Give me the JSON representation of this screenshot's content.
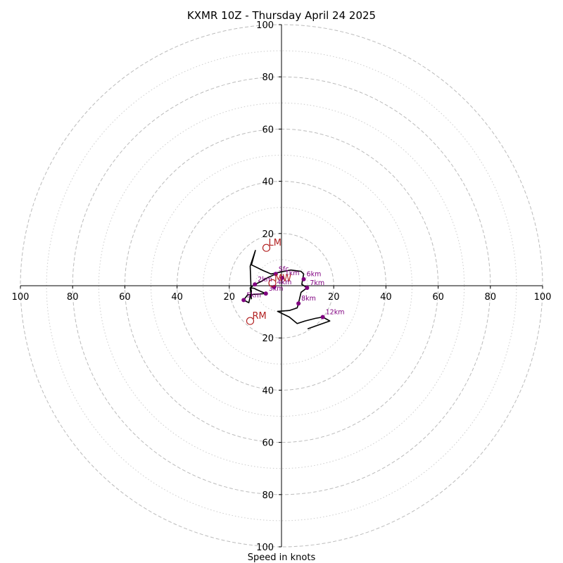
{
  "chart_data": {
    "type": "scatter",
    "subtype": "hodograph",
    "title": "KXMR 10Z - Thursday April 24 2025",
    "xlabel": "Speed in knots",
    "ylabel": "",
    "xlim": [
      -100,
      100
    ],
    "ylim": [
      -100,
      100
    ],
    "rings": {
      "major": [
        20,
        40,
        60,
        80,
        100
      ],
      "minor": [
        10,
        30,
        50,
        70,
        90
      ]
    },
    "x_ticks": [
      {
        "value": -100,
        "label": "100"
      },
      {
        "value": -80,
        "label": "80"
      },
      {
        "value": -60,
        "label": "60"
      },
      {
        "value": -40,
        "label": "40"
      },
      {
        "value": -20,
        "label": "20"
      },
      {
        "value": 20,
        "label": "20"
      },
      {
        "value": 40,
        "label": "40"
      },
      {
        "value": 60,
        "label": "60"
      },
      {
        "value": 80,
        "label": "80"
      },
      {
        "value": 100,
        "label": "100"
      }
    ],
    "y_ticks": [
      {
        "value": 100,
        "label": "100"
      },
      {
        "value": 80,
        "label": "80"
      },
      {
        "value": 60,
        "label": "60"
      },
      {
        "value": 40,
        "label": "40"
      },
      {
        "value": 20,
        "label": "20"
      },
      {
        "value": -20,
        "label": "20"
      },
      {
        "value": -40,
        "label": "40"
      },
      {
        "value": -60,
        "label": "60"
      },
      {
        "value": -80,
        "label": "80"
      },
      {
        "value": -100,
        "label": "100"
      }
    ],
    "profile": [
      [
        -2.2,
        4.5
      ],
      [
        -5.5,
        3.0
      ],
      [
        -8.0,
        1.5
      ],
      [
        -10.2,
        0.5
      ],
      [
        -12.0,
        -0.8
      ],
      [
        -10.5,
        -1.0
      ],
      [
        -9.5,
        -1.5
      ],
      [
        -6.0,
        -3.0
      ],
      [
        -13.0,
        -3.5
      ],
      [
        -14.5,
        -5.5
      ],
      [
        -12.5,
        -6.5
      ],
      [
        -11.5,
        -2.0
      ],
      [
        -12.0,
        -0.8
      ],
      [
        -11.5,
        -5.0
      ],
      [
        -12.0,
        7.5
      ],
      [
        -10.0,
        13.5
      ],
      [
        -11.5,
        8.0
      ],
      [
        -7.0,
        5.8
      ],
      [
        -4.0,
        4.5
      ],
      [
        3.5,
        6.0
      ],
      [
        7.5,
        5.5
      ],
      [
        8.5,
        4.5
      ],
      [
        8.0,
        2.0
      ],
      [
        7.8,
        0.5
      ],
      [
        9.8,
        -0.8
      ],
      [
        7.5,
        -2.5
      ],
      [
        6.5,
        -6.8
      ],
      [
        6.0,
        -8.5
      ],
      [
        3.0,
        -9.5
      ],
      [
        -1.5,
        -9.8
      ],
      [
        3.0,
        -12.0
      ],
      [
        6.0,
        -14.5
      ],
      [
        9.0,
        -13.5
      ],
      [
        13.0,
        -12.5
      ],
      [
        15.8,
        -12.0
      ],
      [
        18.5,
        -13.5
      ],
      [
        10.0,
        -16.5
      ]
    ],
    "height_markers": [
      {
        "label": "Sfc",
        "x": -2.2,
        "y": 4.5
      },
      {
        "label": "1km",
        "x": 0.2,
        "y": 3.0
      },
      {
        "label": "2km",
        "x": -10.2,
        "y": 0.5
      },
      {
        "label": "3km",
        "x": -6.0,
        "y": -3.0
      },
      {
        "label": "4km",
        "x": -2.8,
        "y": -0.5
      },
      {
        "label": "5km",
        "x": -14.5,
        "y": -5.5
      },
      {
        "label": "6km",
        "x": 8.5,
        "y": 2.5
      },
      {
        "label": "7km",
        "x": 9.8,
        "y": -0.8
      },
      {
        "label": "8km",
        "x": 6.5,
        "y": -6.8
      },
      {
        "label": "12km",
        "x": 15.8,
        "y": -12.0
      }
    ],
    "storm_motion": [
      {
        "label": "LM",
        "x": -5.8,
        "y": 14.5
      },
      {
        "label": "MW",
        "x": -3.5,
        "y": 1.0
      },
      {
        "label": "RM",
        "x": -12.0,
        "y": -13.5
      }
    ],
    "colors": {
      "profile": "#000000",
      "markers": "#800080",
      "storm_motion": "#b22222",
      "ring_major": "#bbbbbb",
      "ring_minor": "#cccccc",
      "axes": "#000000"
    }
  }
}
